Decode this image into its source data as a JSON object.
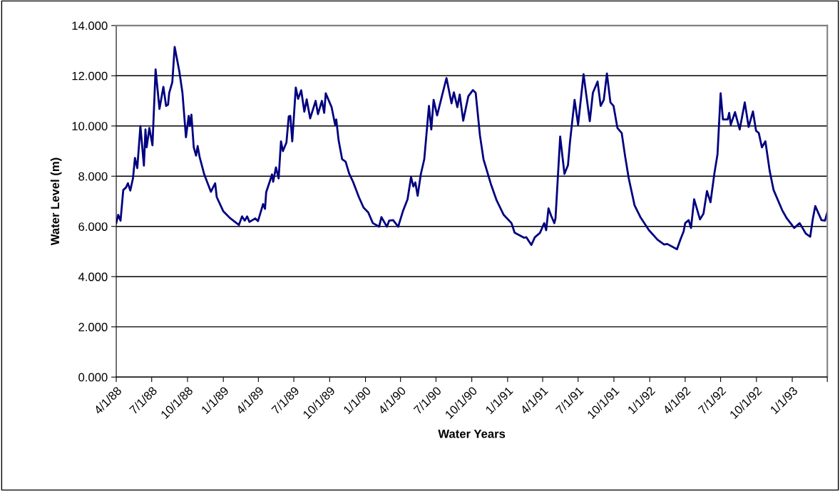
{
  "chart_data": {
    "type": "line",
    "xlabel": "Water Years",
    "ylabel": "Water Level (m)",
    "x": [
      "1988-04-01",
      "1988-04-06",
      "1988-04-12",
      "1988-04-19",
      "1988-04-26",
      "1988-05-01",
      "1988-05-07",
      "1988-05-14",
      "1988-05-19",
      "1988-05-25",
      "1988-06-02",
      "1988-06-11",
      "1988-06-15",
      "1988-06-18",
      "1988-06-25",
      "1988-07-03",
      "1988-07-11",
      "1988-07-21",
      "1988-07-31",
      "1988-08-07",
      "1988-08-12",
      "1988-08-15",
      "1988-08-23",
      "1988-08-29",
      "1988-09-10",
      "1988-09-18",
      "1988-09-27",
      "1988-10-04",
      "1988-10-07",
      "1988-10-11",
      "1988-10-17",
      "1988-10-23",
      "1988-10-27",
      "1988-11-01",
      "1988-11-13",
      "1988-11-30",
      "1988-12-11",
      "1988-12-15",
      "1989-01-01",
      "1989-01-19",
      "1989-02-10",
      "1989-02-18",
      "1989-02-25",
      "1989-03-03",
      "1989-03-09",
      "1989-03-24",
      "1989-03-31",
      "1989-04-13",
      "1989-04-18",
      "1989-04-21",
      "1989-04-30",
      "1989-05-06",
      "1989-05-09",
      "1989-05-16",
      "1989-05-23",
      "1989-05-29",
      "1989-06-03",
      "1989-06-12",
      "1989-06-18",
      "1989-06-22",
      "1989-06-27",
      "1989-07-06",
      "1989-07-12",
      "1989-07-20",
      "1989-07-28",
      "1989-08-03",
      "1989-08-12",
      "1989-08-26",
      "1989-09-01",
      "1989-09-11",
      "1989-09-17",
      "1989-09-21",
      "1989-10-06",
      "1989-10-15",
      "1989-10-18",
      "1989-10-24",
      "1989-11-02",
      "1989-11-11",
      "1989-11-20",
      "1989-11-30",
      "1989-12-15",
      "1989-12-27",
      "1990-01-08",
      "1990-01-20",
      "1990-02-05",
      "1990-02-11",
      "1990-02-25",
      "1990-03-03",
      "1990-03-13",
      "1990-03-26",
      "1990-04-07",
      "1990-04-19",
      "1990-04-28",
      "1990-05-04",
      "1990-05-09",
      "1990-05-15",
      "1990-05-23",
      "1990-06-01",
      "1990-06-13",
      "1990-06-19",
      "1990-06-25",
      "1990-07-04",
      "1990-07-17",
      "1990-07-28",
      "1990-08-10",
      "1990-08-16",
      "1990-08-25",
      "1990-08-31",
      "1990-09-09",
      "1990-09-22",
      "1990-10-04",
      "1990-10-11",
      "1990-10-22",
      "1990-10-31",
      "1990-11-19",
      "1990-12-04",
      "1990-12-22",
      "1991-01-11",
      "1991-01-19",
      "1991-02-12",
      "1991-02-18",
      "1991-03-03",
      "1991-03-12",
      "1991-03-25",
      "1991-04-05",
      "1991-04-10",
      "1991-04-16",
      "1991-04-23",
      "1991-05-01",
      "1991-05-04",
      "1991-05-16",
      "1991-05-27",
      "1991-06-05",
      "1991-06-10",
      "1991-06-22",
      "1991-07-01",
      "1991-07-15",
      "1991-07-31",
      "1991-08-08",
      "1991-08-20",
      "1991-08-28",
      "1991-09-05",
      "1991-09-13",
      "1991-09-22",
      "1991-09-30",
      "1991-10-10",
      "1991-10-21",
      "1991-10-30",
      "1991-11-08",
      "1991-11-23",
      "1991-12-08",
      "1991-12-30",
      "1992-01-21",
      "1992-02-07",
      "1992-02-15",
      "1992-03-11",
      "1992-03-20",
      "1992-03-28",
      "1992-04-01",
      "1992-04-10",
      "1992-04-16",
      "1992-04-24",
      "1992-05-09",
      "1992-05-18",
      "1992-05-27",
      "1992-06-05",
      "1992-06-15",
      "1992-06-23",
      "1992-07-01",
      "1992-07-07",
      "1992-07-19",
      "1992-07-23",
      "1992-07-27",
      "1992-08-07",
      "1992-08-19",
      "1992-09-01",
      "1992-09-11",
      "1992-09-22",
      "1992-09-30",
      "1992-10-07",
      "1992-10-15",
      "1992-10-24",
      "1992-11-04",
      "1992-11-14",
      "1992-12-06",
      "1992-12-18",
      "1993-01-06",
      "1993-01-20",
      "1993-02-05",
      "1993-02-16",
      "1993-02-23",
      "1993-03-01",
      "1993-03-17",
      "1993-03-26",
      "1993-04-01"
    ],
    "series": [
      {
        "color": "#000080",
        "values": [
          6.13,
          6.46,
          6.23,
          7.45,
          7.55,
          7.72,
          7.43,
          7.92,
          8.73,
          8.32,
          10.0,
          8.42,
          9.86,
          9.15,
          9.92,
          9.23,
          12.25,
          10.68,
          11.56,
          10.8,
          10.85,
          11.32,
          11.75,
          13.15,
          12.17,
          11.32,
          9.55,
          10.4,
          10.0,
          10.45,
          9.15,
          8.82,
          9.2,
          8.77,
          8.07,
          7.38,
          7.72,
          7.17,
          6.6,
          6.32,
          6.06,
          6.4,
          6.23,
          6.4,
          6.18,
          6.32,
          6.21,
          6.89,
          6.7,
          7.36,
          7.78,
          8.07,
          7.78,
          8.35,
          7.91,
          9.39,
          9.0,
          9.34,
          10.38,
          10.4,
          9.39,
          11.53,
          11.08,
          11.42,
          10.57,
          11.06,
          10.3,
          11.0,
          10.47,
          11.0,
          10.52,
          11.3,
          10.75,
          10.05,
          10.26,
          9.43,
          8.68,
          8.58,
          8.11,
          7.78,
          7.17,
          6.75,
          6.56,
          6.13,
          5.99,
          6.37,
          5.99,
          6.23,
          6.25,
          5.99,
          6.6,
          7.08,
          7.97,
          7.59,
          7.75,
          7.22,
          8.07,
          8.68,
          10.8,
          9.86,
          11.04,
          10.42,
          11.23,
          11.91,
          10.9,
          11.34,
          10.75,
          11.25,
          10.21,
          11.18,
          11.43,
          11.32,
          9.62,
          8.68,
          7.69,
          7.03,
          6.46,
          6.13,
          5.75,
          5.55,
          5.57,
          5.26,
          5.57,
          5.74,
          6.13,
          5.85,
          6.72,
          6.42,
          6.13,
          6.32,
          9.58,
          8.09,
          8.44,
          9.34,
          11.04,
          10.05,
          12.06,
          10.19,
          11.32,
          11.77,
          10.8,
          11.04,
          12.09,
          10.94,
          10.8,
          9.92,
          9.72,
          8.77,
          7.92,
          6.84,
          6.37,
          5.85,
          5.47,
          5.28,
          5.3,
          5.09,
          5.49,
          5.8,
          6.13,
          6.25,
          5.94,
          7.08,
          6.28,
          6.51,
          7.41,
          6.96,
          8.11,
          8.87,
          11.3,
          10.26,
          10.26,
          10.52,
          10.05,
          10.55,
          9.86,
          10.94,
          9.96,
          10.58,
          9.81,
          9.72,
          9.15,
          9.39,
          8.21,
          7.45,
          6.65,
          6.32,
          5.94,
          6.13,
          5.71,
          5.59,
          6.32,
          6.81,
          6.25,
          6.23,
          6.56
        ]
      }
    ],
    "xlim": [
      "1988-04-01",
      "1993-04-01"
    ],
    "xticks": [
      {
        "value": "1988-04-01",
        "label": "4/1/88"
      },
      {
        "value": "1988-07-01",
        "label": "7/1/88"
      },
      {
        "value": "1988-10-01",
        "label": "10/1/88"
      },
      {
        "value": "1989-01-01",
        "label": "1/1/89"
      },
      {
        "value": "1989-04-01",
        "label": "4/1/89"
      },
      {
        "value": "1989-07-01",
        "label": "7/1/89"
      },
      {
        "value": "1989-10-01",
        "label": "10/1/89"
      },
      {
        "value": "1990-01-01",
        "label": "1/1/90"
      },
      {
        "value": "1990-04-01",
        "label": "4/1/90"
      },
      {
        "value": "1990-07-01",
        "label": "7/1/90"
      },
      {
        "value": "1990-10-01",
        "label": "10/1/90"
      },
      {
        "value": "1991-01-01",
        "label": "1/1/91"
      },
      {
        "value": "1991-04-01",
        "label": "4/1/91"
      },
      {
        "value": "1991-07-01",
        "label": "7/1/91"
      },
      {
        "value": "1991-10-01",
        "label": "10/1/91"
      },
      {
        "value": "1992-01-01",
        "label": "1/1/92"
      },
      {
        "value": "1992-04-01",
        "label": "4/1/92"
      },
      {
        "value": "1992-07-01",
        "label": "7/1/92"
      },
      {
        "value": "1992-10-01",
        "label": "10/1/92"
      },
      {
        "value": "1993-01-01",
        "label": "1/1/93"
      },
      {
        "value": "1993-04-01",
        "label": null
      }
    ],
    "ylim": [
      0,
      14
    ],
    "yticks": [
      {
        "value": 0,
        "label": "0.000"
      },
      {
        "value": 2,
        "label": "2.000"
      },
      {
        "value": 4,
        "label": "4.000"
      },
      {
        "value": 6,
        "label": "6.000"
      },
      {
        "value": 8,
        "label": "8.000"
      },
      {
        "value": 10,
        "label": "10.000"
      },
      {
        "value": 12,
        "label": "12.000"
      },
      {
        "value": 14,
        "label": "14.000"
      }
    ],
    "grid": "y",
    "marker": "none",
    "line_style": "solid"
  }
}
